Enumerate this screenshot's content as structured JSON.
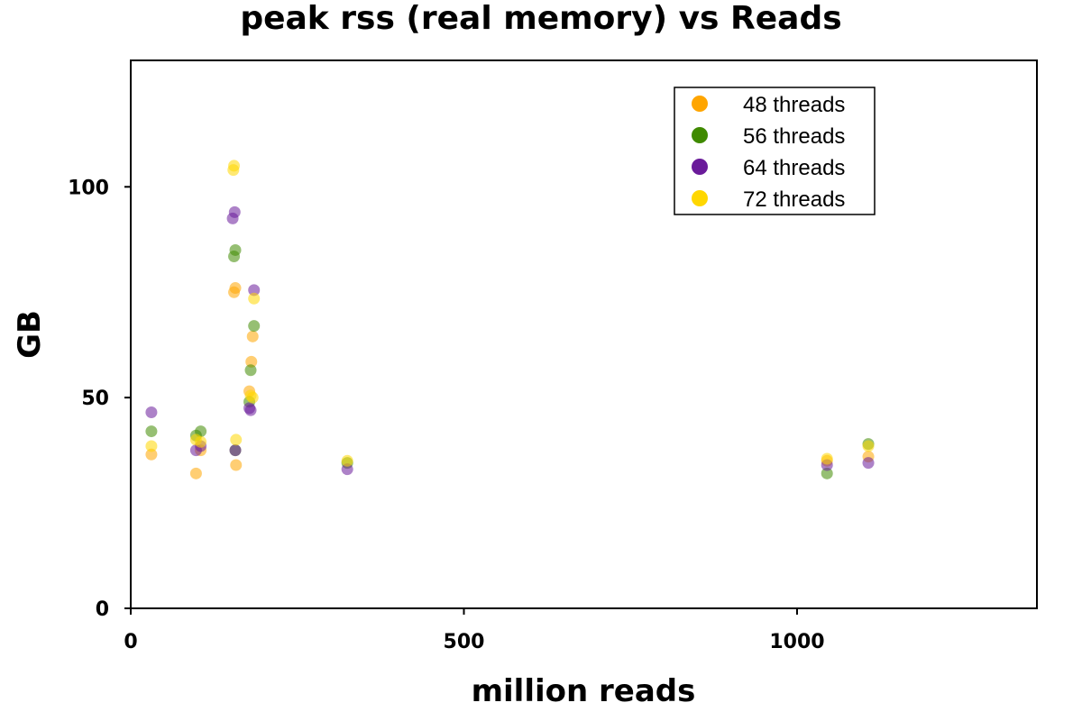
{
  "chart_data": {
    "type": "scatter",
    "title": "peak rss (real memory) vs Reads",
    "xlabel": "million reads",
    "ylabel": "GB",
    "xlim": [
      0,
      1360
    ],
    "ylim": [
      0,
      130
    ],
    "xticks": [
      0,
      500,
      1000
    ],
    "yticks": [
      0,
      50,
      100
    ],
    "grid": false,
    "legend_position": "top-right",
    "series": [
      {
        "name": "48 threads",
        "color": "#FFA500",
        "points": [
          [
            31,
            36.5
          ],
          [
            98,
            32
          ],
          [
            105,
            37.5
          ],
          [
            155,
            75
          ],
          [
            157,
            76
          ],
          [
            158,
            34
          ],
          [
            178,
            51.5
          ],
          [
            181,
            58.5
          ],
          [
            183,
            64.5
          ],
          [
            1045,
            35
          ],
          [
            1107,
            36
          ]
        ]
      },
      {
        "name": "56 threads",
        "color": "#3F8A00",
        "points": [
          [
            31,
            42
          ],
          [
            98,
            41
          ],
          [
            105,
            42
          ],
          [
            155,
            83.5
          ],
          [
            157,
            85
          ],
          [
            157,
            37.5
          ],
          [
            178,
            49
          ],
          [
            180,
            56.5
          ],
          [
            185,
            67
          ],
          [
            325,
            34.5
          ],
          [
            1045,
            32
          ],
          [
            1107,
            39
          ]
        ]
      },
      {
        "name": "64 threads",
        "color": "#6A1B9A",
        "points": [
          [
            31,
            46.5
          ],
          [
            98,
            37.5
          ],
          [
            105,
            38.5
          ],
          [
            153,
            92.5
          ],
          [
            156,
            94
          ],
          [
            157,
            37.5
          ],
          [
            178,
            47.5
          ],
          [
            180,
            47
          ],
          [
            185,
            75.5
          ],
          [
            325,
            33
          ],
          [
            1045,
            34
          ],
          [
            1107,
            34.5
          ]
        ]
      },
      {
        "name": "72 threads",
        "color": "#FFD700",
        "points": [
          [
            31,
            38.5
          ],
          [
            98,
            40
          ],
          [
            105,
            39.5
          ],
          [
            154,
            104
          ],
          [
            155,
            105
          ],
          [
            158,
            40
          ],
          [
            180,
            50.5
          ],
          [
            183,
            50
          ],
          [
            185,
            73.5
          ],
          [
            325,
            35
          ],
          [
            1045,
            35.5
          ],
          [
            1107,
            38.5
          ]
        ]
      }
    ]
  }
}
